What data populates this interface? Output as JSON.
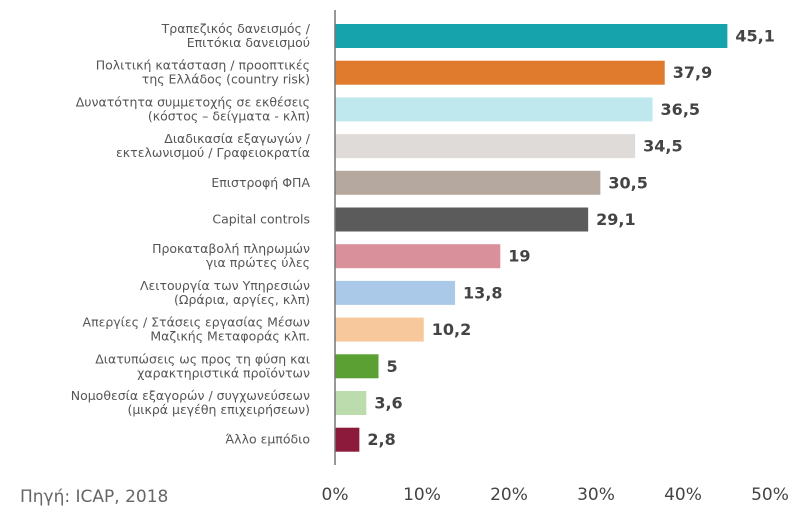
{
  "chart_data": {
    "type": "bar",
    "orientation": "horizontal",
    "categories": [
      [
        "Τραπεζικός δανεισμός /",
        "Επιτόκια δανεισμού"
      ],
      [
        "Πολιτική κατάσταση / προοπτικές",
        "της Ελλάδος (country risk)"
      ],
      [
        "Δυνατότητα συμμετοχής σε εκθέσεις",
        "(κόστος – δείγματα - κλπ)"
      ],
      [
        "Διαδικασία εξαγωγών /",
        "εκτελωνισμού / Γραφειοκρατία"
      ],
      [
        "Επιστροφή ΦΠΑ"
      ],
      [
        "Capital controls"
      ],
      [
        "Προκαταβολή πληρωμών",
        "για πρώτες ύλες"
      ],
      [
        "Λειτουργία των Υπηρεσιών",
        "(Ωράρια, αργίες, κλπ)"
      ],
      [
        "Απεργίες / Στάσεις εργασίας Μέσων",
        "Μαζικής Μεταφοράς κλπ."
      ],
      [
        "Διατυπώσεις ως προς τη φύση και",
        "χαρακτηριστικά προϊόντων"
      ],
      [
        "Νομοθεσία εξαγορών / συγχωνεύσεων",
        "(μικρά μεγέθη επιχειρήσεων)"
      ],
      [
        "Άλλο εμπόδιο"
      ]
    ],
    "values": [
      45.1,
      37.9,
      36.5,
      34.5,
      30.5,
      29.1,
      19,
      13.8,
      10.2,
      5,
      3.6,
      2.8
    ],
    "value_labels": [
      "45,1",
      "37,9",
      "36,5",
      "34,5",
      "30,5",
      "29,1",
      "19",
      "13,8",
      "10,2",
      "5",
      "3,6",
      "2,8"
    ],
    "colors": [
      "#16a3ab",
      "#e07b2e",
      "#bfe7ee",
      "#dedbd8",
      "#b5a99f",
      "#5b5b5b",
      "#d9909b",
      "#aac9e8",
      "#f6c89b",
      "#5ba032",
      "#bddcae",
      "#8c1b3b"
    ],
    "xlim": [
      0,
      50
    ],
    "xticks": [
      {
        "value": 0,
        "label": "0%"
      },
      {
        "value": 10,
        "label": "10%"
      },
      {
        "value": 20,
        "label": "20%"
      },
      {
        "value": 30,
        "label": "30%"
      },
      {
        "value": 40,
        "label": "40%"
      },
      {
        "value": 50,
        "label": "50%"
      }
    ],
    "grid": false,
    "source": "Πηγή: ICAP, 2018"
  }
}
